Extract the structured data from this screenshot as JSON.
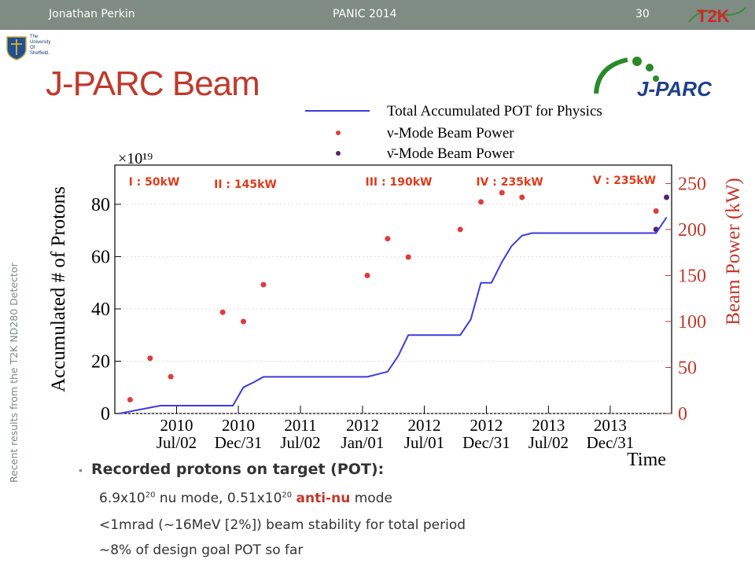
{
  "header": {
    "author": "Jonathan Perkin",
    "conference": "PANIC 2014",
    "slide_number": "30",
    "t2k_logo_text": "T2K"
  },
  "university": {
    "lines": [
      "The",
      "University",
      "Of",
      "Sheffield."
    ]
  },
  "title": "J-PARC Beam",
  "jparc_logo_text": "J-PARC",
  "side_text": "Recent results from the T2K ND280 Detector",
  "bullets": {
    "title": "Recorded protons on target (POT):",
    "line1_a": "6.9x10",
    "line1_sup1": "20",
    "line1_b": " nu mode, 0.51x10",
    "line1_sup2": "20",
    "line1_c": "anti-nu",
    "line1_d": " mode",
    "line2": "<1mrad (~16MeV [2%]) beam stability for total period",
    "line3": "~8% of design goal POT so far"
  },
  "chart_data": {
    "type": "line",
    "title": "",
    "xlabel": "Time",
    "ylabel": "Accumulated # of Protons",
    "ylabel_right": "Beam Power (kW)",
    "y_multiplier": "×10¹⁹",
    "ylim": [
      0,
      95
    ],
    "ylim_right": [
      0,
      270
    ],
    "yticks": [
      0,
      20,
      40,
      60,
      80
    ],
    "yticks_right": [
      0,
      50,
      100,
      150,
      200,
      250
    ],
    "xticks": [
      {
        "year": "2010",
        "date": "Jul/02"
      },
      {
        "year": "2010",
        "date": "Dec/31"
      },
      {
        "year": "2011",
        "date": "Jul/02"
      },
      {
        "year": "2012",
        "date": "Jan/01"
      },
      {
        "year": "2012",
        "date": "Jul/01"
      },
      {
        "year": "2012",
        "date": "Dec/31"
      },
      {
        "year": "2013",
        "date": "Jul/02"
      },
      {
        "year": "2013",
        "date": "Dec/31"
      }
    ],
    "legend": [
      "Total Accumulated POT for Physics",
      "ν-Mode Beam Power",
      "ν̄-Mode Beam Power"
    ],
    "legend_position": "top-right",
    "colors": {
      "pot": "#3b3bdc",
      "nu": "#e23b3b",
      "antinu": "#5a2070"
    },
    "run_labels": [
      "I : 50kW",
      "II : 145kW",
      "III : 190kW",
      "IV : 235kW",
      "V : 235kW"
    ],
    "series": [
      {
        "name": "Total Accumulated POT for Physics",
        "x": [
          "2010-01",
          "2010-05",
          "2010-07",
          "2010-12",
          "2011-01",
          "2011-02",
          "2011-03",
          "2012-01",
          "2012-03",
          "2012-04",
          "2012-05",
          "2012-06",
          "2012-10",
          "2012-11",
          "2012-12",
          "2013-01",
          "2013-02",
          "2013-03",
          "2013-04",
          "2013-05",
          "2014-05",
          "2014-06"
        ],
        "values": [
          0,
          3,
          3,
          3,
          10,
          12,
          14,
          14,
          16,
          22,
          30,
          30,
          30,
          36,
          50,
          50,
          58,
          64,
          68,
          69,
          69,
          75
        ]
      },
      {
        "name": "ν-Mode Beam Power",
        "x": [
          "2010-02",
          "2010-04",
          "2010-06",
          "2010-11",
          "2011-01",
          "2011-03",
          "2012-01",
          "2012-03",
          "2012-05",
          "2012-10",
          "2012-12",
          "2013-02",
          "2013-04",
          "2014-05"
        ],
        "values": [
          15,
          60,
          40,
          110,
          100,
          140,
          150,
          190,
          170,
          200,
          230,
          240,
          235,
          220
        ]
      },
      {
        "name": "ν̄-Mode Beam Power",
        "x": [
          "2014-05",
          "2014-06"
        ],
        "values": [
          200,
          235
        ]
      }
    ]
  }
}
